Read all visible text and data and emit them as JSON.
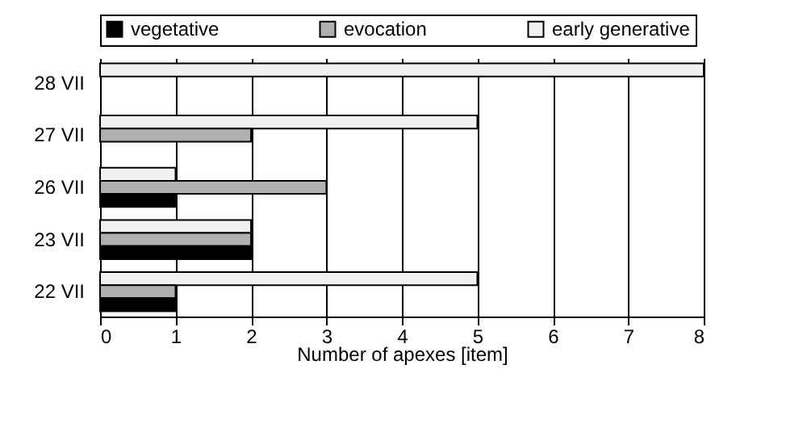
{
  "chart_data": {
    "type": "bar",
    "orientation": "horizontal",
    "xlabel": "Number of apexes [item]",
    "categories": [
      "28 VII",
      "27 VII",
      "26 VII",
      "23 VII",
      "22 VII"
    ],
    "series": [
      {
        "name": "early generative",
        "color": "#f0f0f0",
        "values": [
          8,
          5,
          1,
          2,
          5
        ]
      },
      {
        "name": "evocation",
        "color": "#b0b0b0",
        "values": [
          null,
          2,
          3,
          2,
          1
        ]
      },
      {
        "name": "vegetative",
        "color": "#000000",
        "values": [
          null,
          null,
          1,
          2,
          1
        ]
      }
    ],
    "xlim": [
      0,
      8
    ],
    "xticks": [
      0,
      1,
      2,
      3,
      4,
      5,
      6,
      7,
      8
    ],
    "grid": "x",
    "legend": "top"
  }
}
